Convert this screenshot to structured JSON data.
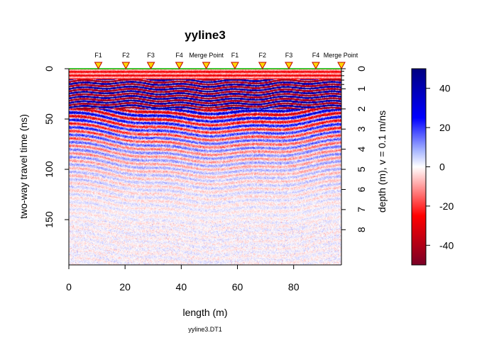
{
  "chart_data": {
    "type": "heatmap",
    "title": "yyline3",
    "xlabel": "length (m)",
    "ylabel": "two-way travel time (ns)",
    "y2label": "depth (m),  v = 0.1 m/ns",
    "caption": "yyline3.DT1",
    "xlim": [
      0,
      97
    ],
    "ylim": [
      0,
      195
    ],
    "x_ticks": [
      0,
      20,
      40,
      60,
      80
    ],
    "y_ticks": [
      0,
      50,
      100,
      150
    ],
    "depth_ticks": [
      0,
      1,
      2,
      3,
      4,
      5,
      6,
      7,
      8
    ],
    "velocity_m_per_ns": 0.1,
    "markers": [
      {
        "label": "F1",
        "x": 10.5
      },
      {
        "label": "F2",
        "x": 20.3
      },
      {
        "label": "F3",
        "x": 29.2
      },
      {
        "label": "F4",
        "x": 39.3
      },
      {
        "label": "Merge Point",
        "x": 48.9
      },
      {
        "label": "F1",
        "x": 59.1
      },
      {
        "label": "F2",
        "x": 68.9
      },
      {
        "label": "F3",
        "x": 78.3
      },
      {
        "label": "F4",
        "x": 87.9
      },
      {
        "label": "Merge Point",
        "x": 97.0
      }
    ],
    "colorbar": {
      "range": [
        -50,
        50
      ],
      "ticks": [
        40,
        20,
        0,
        -20,
        -40
      ],
      "colors": [
        "#7a0026",
        "#ff0000",
        "#ffffff",
        "#0000ff",
        "#000080"
      ]
    }
  }
}
